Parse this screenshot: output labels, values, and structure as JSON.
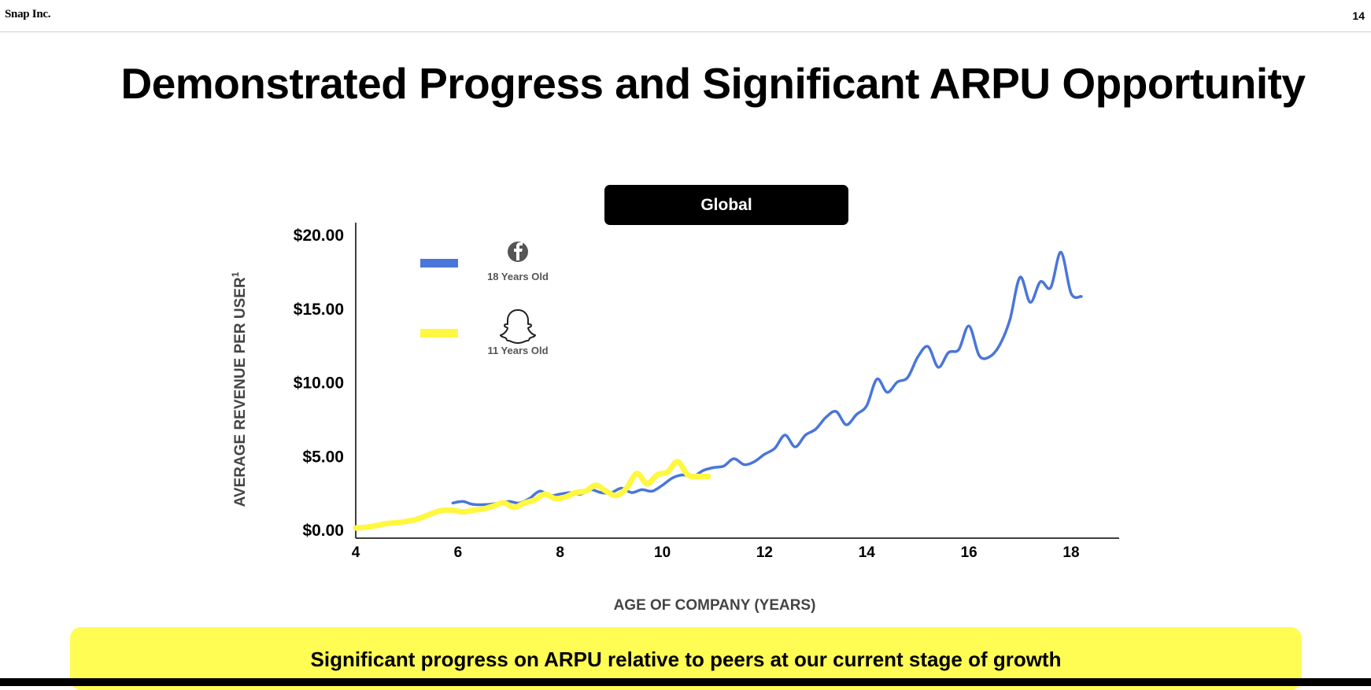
{
  "header": {
    "brand": "Snap Inc.",
    "page_number": "14"
  },
  "title": "Demonstrated Progress and Significant ARPU Opportunity",
  "region_label": "Global",
  "banner_text": "Significant progress on ARPU relative to peers at our current stage of growth",
  "colors": {
    "facebook": "#4a76d9",
    "snapchat": "#fff740",
    "banner": "#fffc54",
    "axis": "#000000"
  },
  "legend": [
    {
      "icon": "facebook-icon",
      "label": "18 Years Old",
      "color": "#4a76d9"
    },
    {
      "icon": "snapchat-ghost-icon",
      "label": "11 Years Old",
      "color": "#fff740"
    }
  ],
  "chart_data": {
    "type": "line",
    "xlabel": "AGE OF COMPANY (YEARS)",
    "ylabel": "AVERAGE REVENUE PER USER",
    "ylabel_superscript": "1",
    "xlim": [
      4,
      18.9
    ],
    "ylim": [
      0,
      21
    ],
    "x_ticks": [
      4,
      6,
      8,
      10,
      12,
      14,
      16,
      18
    ],
    "y_ticks": [
      0,
      5,
      10,
      15,
      20
    ],
    "y_tick_labels": [
      "$0.00",
      "$5.00",
      "$10.00",
      "$15.00",
      "$20.00"
    ],
    "grid": false,
    "series": [
      {
        "name": "18 Years Old",
        "points": [
          [
            5.9,
            1.8
          ],
          [
            6.1,
            1.9
          ],
          [
            6.3,
            1.7
          ],
          [
            6.6,
            1.7
          ],
          [
            6.8,
            1.8
          ],
          [
            7.0,
            1.9
          ],
          [
            7.2,
            1.8
          ],
          [
            7.4,
            2.1
          ],
          [
            7.6,
            2.6
          ],
          [
            7.8,
            2.3
          ],
          [
            8.0,
            2.4
          ],
          [
            8.2,
            2.5
          ],
          [
            8.4,
            2.4
          ],
          [
            8.6,
            2.7
          ],
          [
            8.8,
            2.5
          ],
          [
            9.0,
            2.5
          ],
          [
            9.2,
            2.8
          ],
          [
            9.4,
            2.5
          ],
          [
            9.6,
            2.7
          ],
          [
            9.8,
            2.6
          ],
          [
            10.0,
            3.0
          ],
          [
            10.2,
            3.5
          ],
          [
            10.4,
            3.7
          ],
          [
            10.6,
            3.6
          ],
          [
            10.8,
            4.0
          ],
          [
            11.0,
            4.2
          ],
          [
            11.2,
            4.3
          ],
          [
            11.4,
            4.8
          ],
          [
            11.6,
            4.4
          ],
          [
            11.8,
            4.6
          ],
          [
            12.0,
            5.1
          ],
          [
            12.2,
            5.5
          ],
          [
            12.4,
            6.4
          ],
          [
            12.6,
            5.6
          ],
          [
            12.8,
            6.4
          ],
          [
            13.0,
            6.8
          ],
          [
            13.2,
            7.6
          ],
          [
            13.4,
            8.0
          ],
          [
            13.6,
            7.1
          ],
          [
            13.8,
            7.8
          ],
          [
            14.0,
            8.4
          ],
          [
            14.2,
            10.2
          ],
          [
            14.4,
            9.3
          ],
          [
            14.6,
            10.0
          ],
          [
            14.8,
            10.3
          ],
          [
            15.0,
            11.7
          ],
          [
            15.2,
            12.4
          ],
          [
            15.4,
            11.0
          ],
          [
            15.6,
            12.0
          ],
          [
            15.8,
            12.2
          ],
          [
            16.0,
            13.8
          ],
          [
            16.2,
            11.8
          ],
          [
            16.4,
            11.7
          ],
          [
            16.6,
            12.5
          ],
          [
            16.8,
            14.2
          ],
          [
            17.0,
            17.1
          ],
          [
            17.2,
            15.4
          ],
          [
            17.4,
            16.8
          ],
          [
            17.6,
            16.4
          ],
          [
            17.8,
            18.8
          ],
          [
            18.0,
            16.0
          ],
          [
            18.2,
            15.8
          ]
        ]
      },
      {
        "name": "11 Years Old",
        "points": [
          [
            4.0,
            0.1
          ],
          [
            4.3,
            0.2
          ],
          [
            4.6,
            0.4
          ],
          [
            4.9,
            0.5
          ],
          [
            5.2,
            0.7
          ],
          [
            5.5,
            1.1
          ],
          [
            5.7,
            1.3
          ],
          [
            5.9,
            1.3
          ],
          [
            6.1,
            1.2
          ],
          [
            6.3,
            1.3
          ],
          [
            6.5,
            1.4
          ],
          [
            6.7,
            1.6
          ],
          [
            6.9,
            1.8
          ],
          [
            7.1,
            1.5
          ],
          [
            7.3,
            1.8
          ],
          [
            7.5,
            2.0
          ],
          [
            7.7,
            2.4
          ],
          [
            7.9,
            2.1
          ],
          [
            8.1,
            2.2
          ],
          [
            8.3,
            2.5
          ],
          [
            8.5,
            2.6
          ],
          [
            8.7,
            3.0
          ],
          [
            8.9,
            2.6
          ],
          [
            9.1,
            2.3
          ],
          [
            9.3,
            2.8
          ],
          [
            9.5,
            3.8
          ],
          [
            9.7,
            3.1
          ],
          [
            9.9,
            3.7
          ],
          [
            10.1,
            3.9
          ],
          [
            10.3,
            4.6
          ],
          [
            10.5,
            3.7
          ],
          [
            10.7,
            3.6
          ],
          [
            10.9,
            3.6
          ]
        ]
      }
    ]
  }
}
